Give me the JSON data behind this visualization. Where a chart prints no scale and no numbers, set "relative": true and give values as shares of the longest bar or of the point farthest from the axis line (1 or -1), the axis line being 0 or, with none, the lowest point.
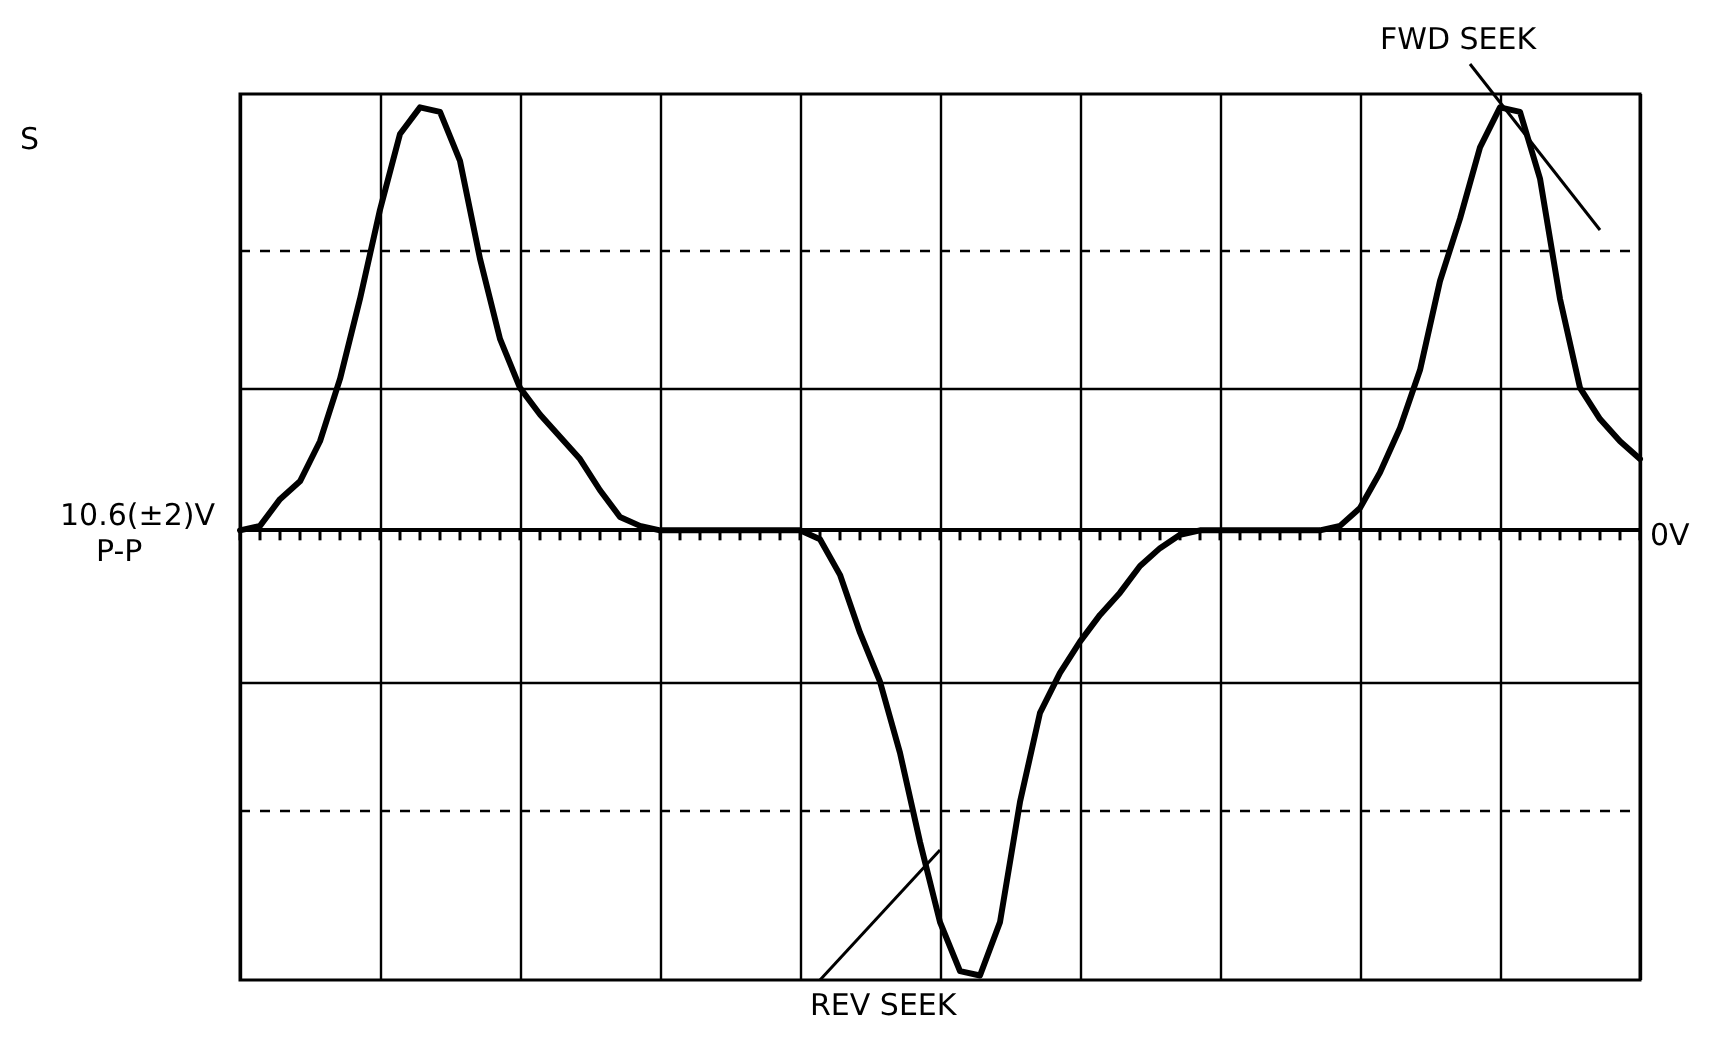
{
  "chart_data": {
    "type": "line",
    "relative": true,
    "categories": [
      null,
      null,
      null,
      null,
      null,
      null,
      null,
      null,
      null,
      null,
      null,
      null,
      null,
      null,
      null,
      null,
      null,
      null,
      null,
      null,
      null,
      null,
      null,
      null,
      null,
      null,
      null,
      null,
      null,
      null,
      null,
      null,
      null,
      null,
      null,
      null,
      null,
      null,
      null,
      null,
      null,
      null,
      null,
      null,
      null,
      null,
      null,
      null,
      null,
      null,
      null,
      null,
      null,
      null,
      null,
      null,
      null,
      null,
      null,
      null,
      null,
      null,
      null,
      null,
      null,
      null,
      null,
      null,
      null,
      null,
      null
    ],
    "series": [
      {
        "color": "#000000",
        "values": [
          0,
          0.01,
          0.07,
          0.11,
          0.2,
          0.34,
          0.52,
          0.72,
          0.89,
          0.95,
          0.94,
          0.83,
          0.61,
          0.43,
          0.32,
          0.26,
          0.21,
          0.16,
          0.09,
          0.03,
          0.01,
          0,
          0,
          0,
          0,
          0,
          0,
          0,
          0,
          -0.02,
          -0.1,
          -0.23,
          -0.34,
          -0.5,
          -0.7,
          -0.88,
          -0.99,
          -1,
          -0.88,
          -0.61,
          -0.41,
          -0.32,
          -0.25,
          -0.19,
          -0.14,
          -0.08,
          -0.04,
          -0.01,
          0,
          0,
          0,
          0,
          0,
          0,
          0,
          0.01,
          0.05,
          0.13,
          0.23,
          0.36,
          0.56,
          0.7,
          0.86,
          0.95,
          0.94,
          0.79,
          0.52,
          0.32,
          0.25,
          0.2,
          0.16
        ]
      }
    ],
    "annotations": [
      "FWD SEEK",
      "REV SEEK",
      "10.6(±2)V",
      "P-P",
      "0V",
      "S"
    ],
    "ref_lines": [
      {
        "axis": "y",
        "value": 0.32,
        "line_style": "solid"
      },
      {
        "axis": "y",
        "value": -0.34,
        "line_style": "solid"
      },
      {
        "axis": "y",
        "value": 0.63,
        "line_style": "dashed"
      },
      {
        "axis": "y",
        "value": -0.63,
        "line_style": "dashed"
      }
    ],
    "grid": "x",
    "marker": "none",
    "line_style": "solid"
  }
}
